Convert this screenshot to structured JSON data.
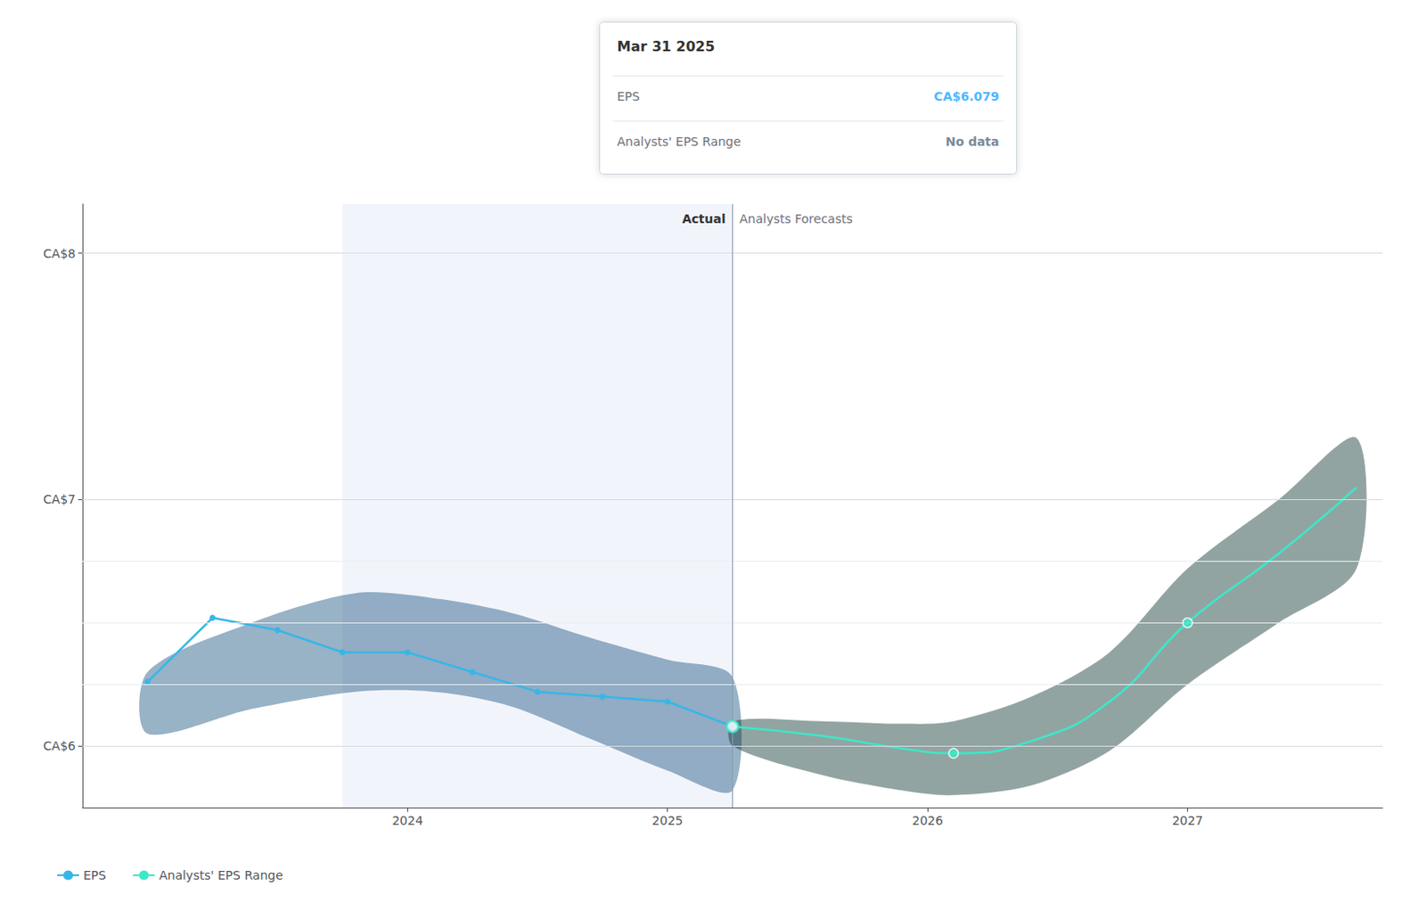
{
  "chart_data": {
    "type": "line",
    "xlim": [
      2022.75,
      2027.75
    ],
    "xticks": [
      2024.0,
      2025.0,
      2026.0,
      2027.0
    ],
    "ylim": [
      5.75,
      8.2
    ],
    "yticks": [
      {
        "value": 6.0,
        "label": "CA$6"
      },
      {
        "value": 7.0,
        "label": "CA$7"
      },
      {
        "value": 8.0,
        "label": "CA$8"
      }
    ],
    "minor_gridlines": [
      6.25,
      6.5,
      6.75
    ],
    "grid": true,
    "legend": "lower left",
    "shaded_span": [
      2023.75,
      2025.25
    ],
    "divider": {
      "x": 2025.25,
      "left_label": "Actual",
      "right_label": "Analysts Forecasts"
    },
    "series": [
      {
        "name": "EPS",
        "type": "line",
        "color": "#38b6e8",
        "marker": "circle",
        "x": [
          2023.0,
          2023.25,
          2023.5,
          2023.75,
          2024.0,
          2024.25,
          2024.5,
          2024.75,
          2025.0,
          2025.25
        ],
        "values": [
          6.26,
          6.52,
          6.47,
          6.38,
          6.38,
          6.3,
          6.22,
          6.2,
          6.18,
          6.079
        ]
      },
      {
        "name": "Analysts' EPS Range",
        "type": "line",
        "color": "#3de8c8",
        "marker": "none",
        "x": [
          2025.25,
          2025.6,
          2025.9,
          2026.1,
          2026.4,
          2026.7,
          2027.0,
          2027.35,
          2027.65
        ],
        "values": [
          6.079,
          6.04,
          5.99,
          5.97,
          6.02,
          6.18,
          6.5,
          6.78,
          7.05
        ]
      },
      {
        "type": "band",
        "color": "#1a5580",
        "x": [
          2023.0,
          2023.4,
          2023.8,
          2024.1,
          2024.4,
          2024.7,
          2025.0,
          2025.25
        ],
        "low": [
          6.05,
          6.15,
          6.22,
          6.22,
          6.16,
          6.03,
          5.9,
          5.82
        ],
        "high": [
          6.3,
          6.5,
          6.62,
          6.6,
          6.54,
          6.44,
          6.35,
          6.28
        ]
      },
      {
        "type": "band",
        "color": "#0d3530",
        "x": [
          2025.25,
          2025.6,
          2025.9,
          2026.1,
          2026.4,
          2026.7,
          2027.0,
          2027.35,
          2027.65
        ],
        "low": [
          6.0,
          5.88,
          5.82,
          5.8,
          5.84,
          5.98,
          6.25,
          6.5,
          6.72
        ],
        "high": [
          6.1,
          6.1,
          6.09,
          6.1,
          6.2,
          6.38,
          6.72,
          7.0,
          7.25
        ]
      },
      {
        "type": "scatter",
        "color": "#3de8c8",
        "marker": "ring",
        "x": [
          2025.25
        ],
        "values": [
          6.079
        ]
      },
      {
        "type": "scatter",
        "color": "#3de8c8",
        "marker": "circle",
        "x": [
          2026.1,
          2027.0
        ],
        "values": [
          5.97,
          6.5
        ]
      }
    ],
    "tooltip_box": {
      "title": "Mar 31 2025",
      "rows": [
        {
          "label": "EPS",
          "value": "CA$6.079",
          "color": "#4db8ff"
        },
        {
          "label": "Analysts' EPS Range",
          "value": "No data",
          "color": "#7a8a9a"
        }
      ]
    }
  }
}
